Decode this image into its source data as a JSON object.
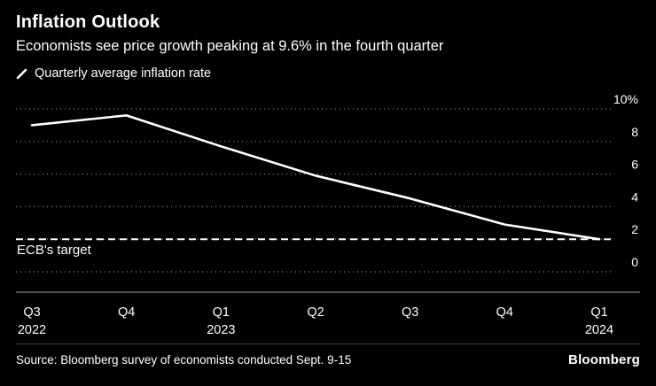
{
  "header": {
    "title": "Inflation Outlook",
    "subtitle": "Economists see price growth peaking at 9.6% in the fourth quarter"
  },
  "legend": {
    "label": "Quarterly average inflation rate"
  },
  "chart_data": {
    "type": "line",
    "categories": [
      "Q3",
      "Q4",
      "Q1",
      "Q2",
      "Q3",
      "Q4",
      "Q1"
    ],
    "year_labels": [
      {
        "index": 0,
        "label": "2022"
      },
      {
        "index": 2,
        "label": "2023"
      },
      {
        "index": 6,
        "label": "2024"
      }
    ],
    "values": [
      9.0,
      9.6,
      7.7,
      5.9,
      4.5,
      2.9,
      2.0
    ],
    "ylim": [
      0,
      10
    ],
    "yticks": [
      0,
      2,
      4,
      6,
      8,
      10
    ],
    "ytick_labels": [
      "0",
      "2",
      "4",
      "6",
      "8",
      "10%"
    ],
    "target_line": {
      "value": 2,
      "label": "ECB's target"
    },
    "line_color": "#ffffff",
    "grid_color": "#8a8a8a",
    "axis_color": "#9a9a9a",
    "legend_position": "top-left",
    "grid": true
  },
  "footer": {
    "source": "Source: Bloomberg survey of economists conducted Sept. 9-15",
    "logo": "Bloomberg"
  }
}
